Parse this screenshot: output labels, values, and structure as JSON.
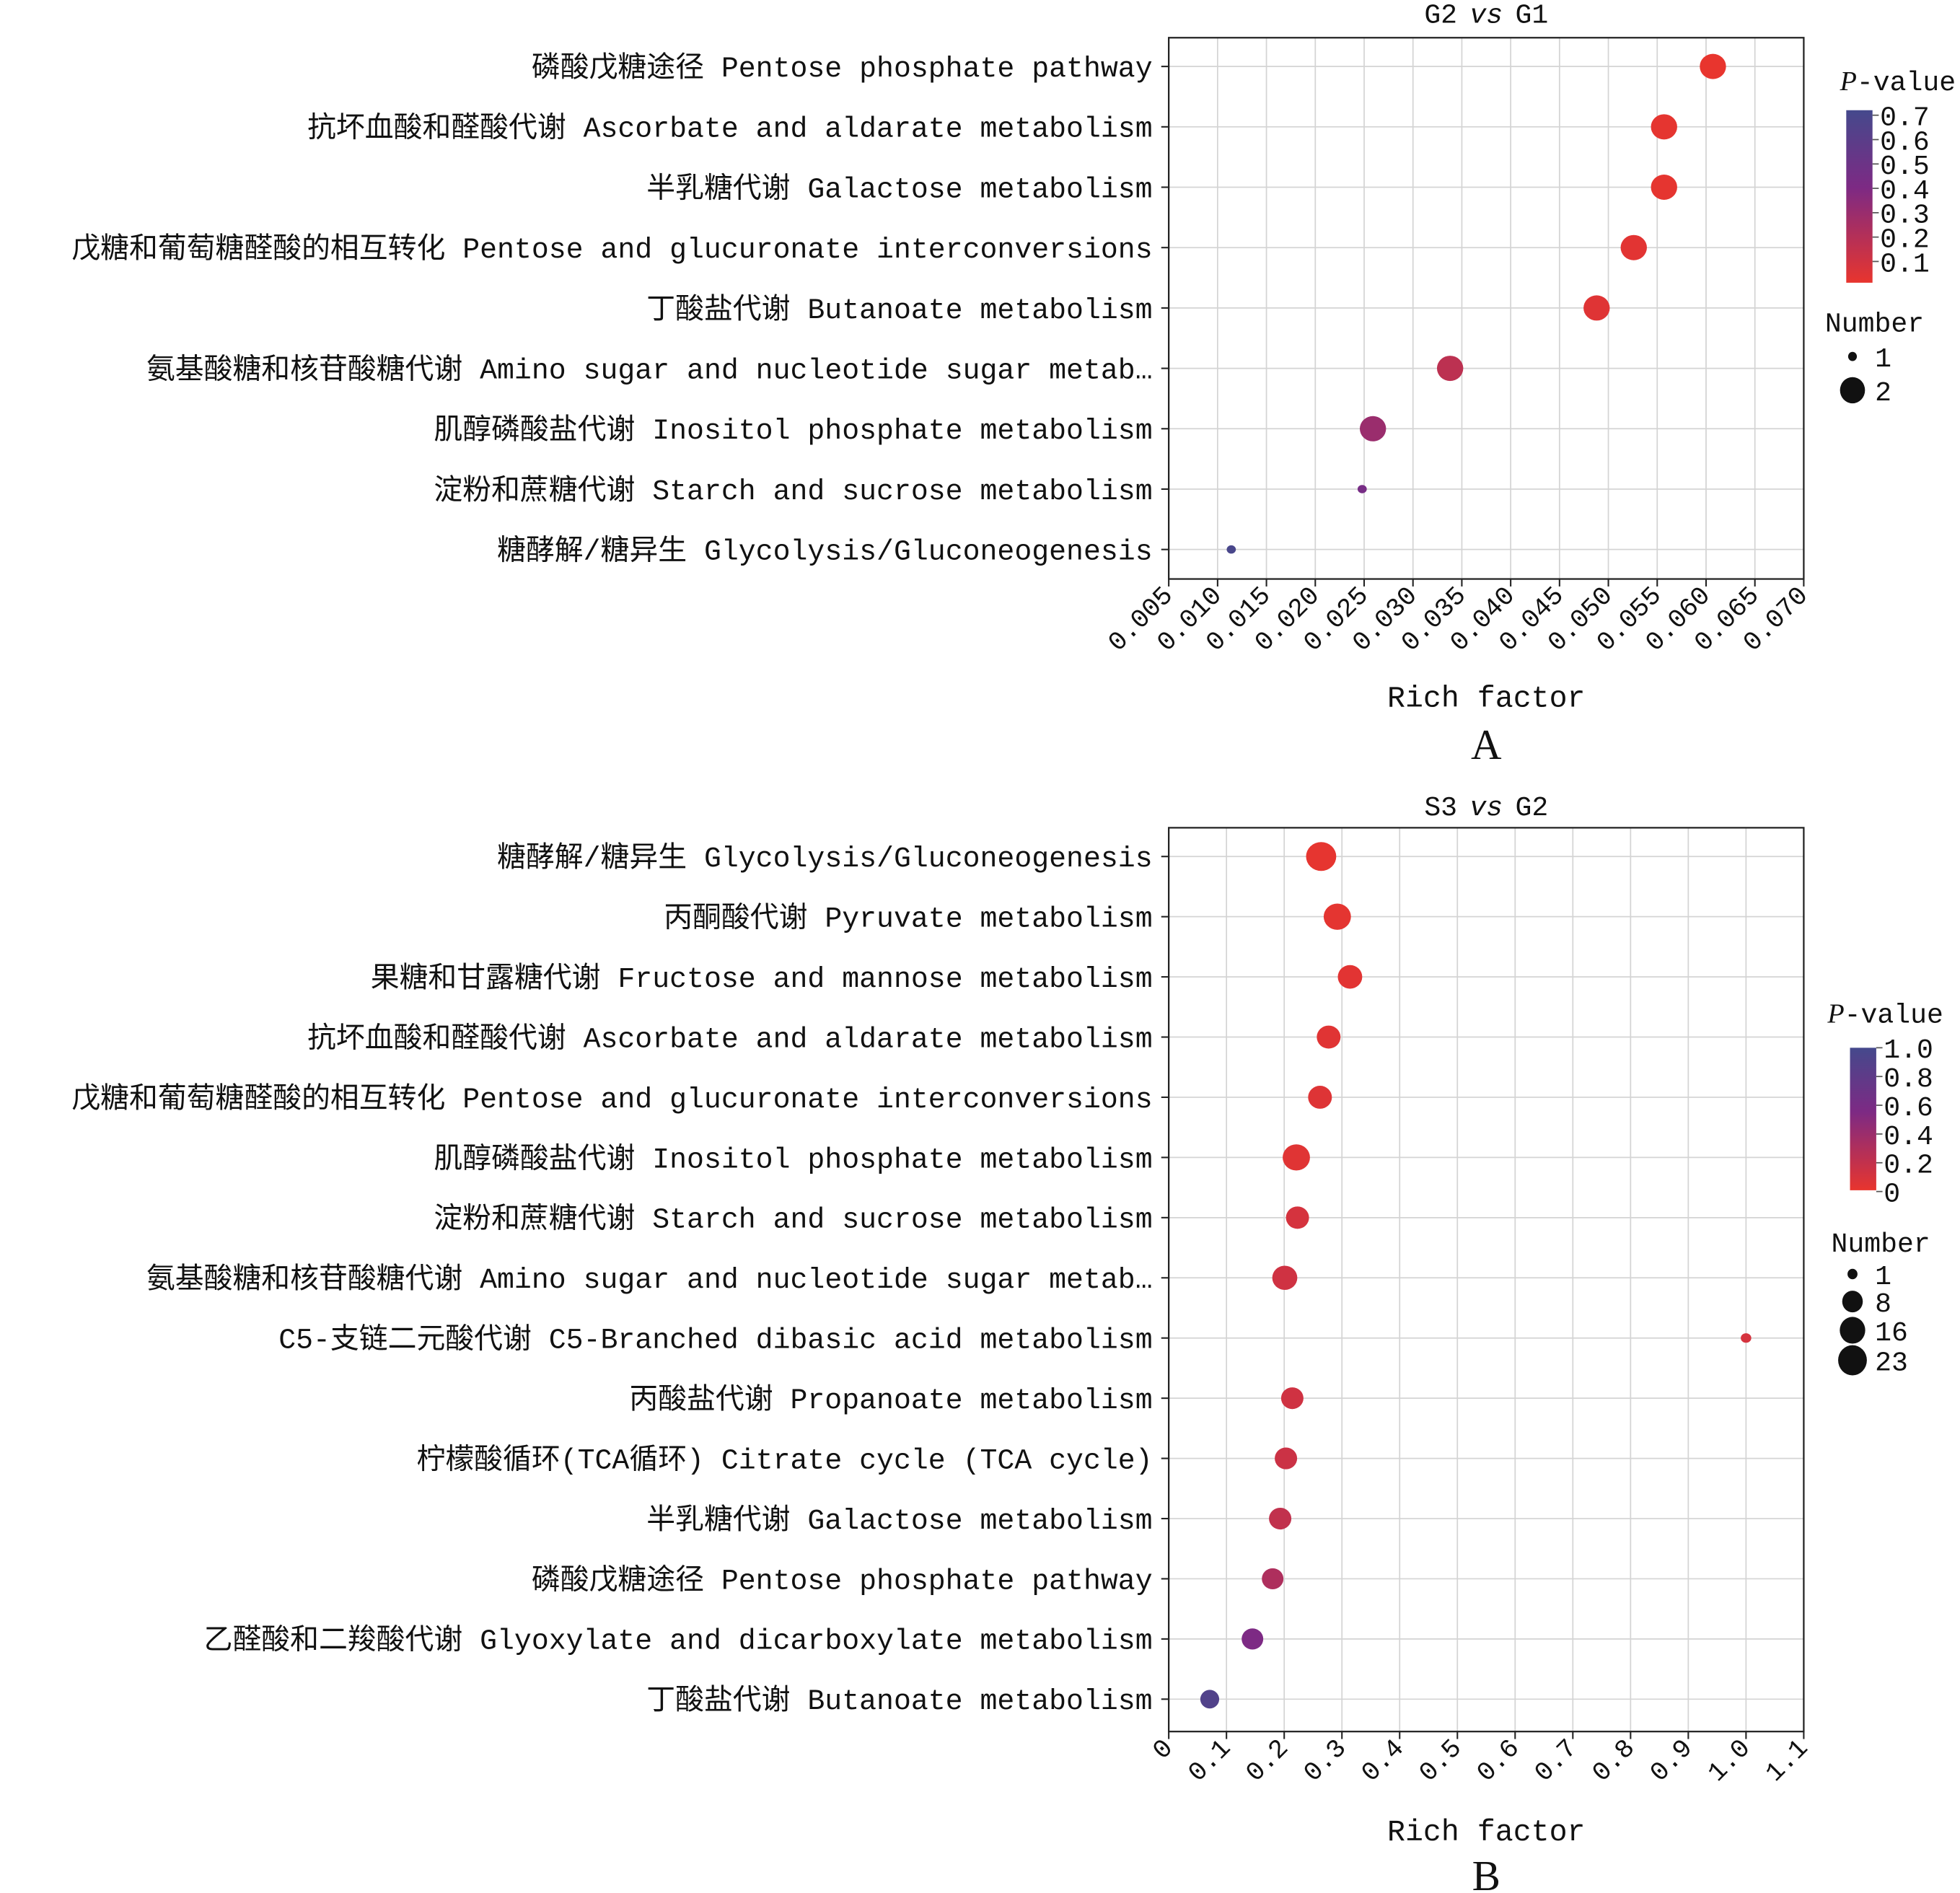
{
  "chart_data": [
    {
      "type": "scatter",
      "panel_label": "A",
      "title": {
        "left": "G2",
        "vs": "vs",
        "right": "G1"
      },
      "xlabel": "Rich factor",
      "xlim": [
        0.005,
        0.07
      ],
      "xticks": [
        "0.005",
        "0.010",
        "0.015",
        "0.020",
        "0.025",
        "0.030",
        "0.035",
        "0.040",
        "0.045",
        "0.050",
        "0.055",
        "0.060",
        "0.065",
        "0.070"
      ],
      "grid": true,
      "legend_placement": "right",
      "color_legend": {
        "title_p": "P",
        "title_rest": "-value",
        "ticks": [
          "0.7",
          "0.6",
          "0.5",
          "0.4",
          "0.3",
          "0.2",
          "0.1"
        ],
        "range": [
          0.05,
          0.72
        ]
      },
      "size_legend": {
        "title": "Number",
        "values": [
          1,
          2
        ]
      },
      "colors": {
        "low": "#e8352e",
        "mid": "#7d2a84",
        "high": "#45498c"
      },
      "points": [
        {
          "label": "磷酸戊糖途径 Pentose phosphate pathway",
          "x": 0.0607,
          "number": 2,
          "p": 0.05
        },
        {
          "label": "抗坏血酸和醛酸代谢 Ascorbate and aldarate metabolism",
          "x": 0.0557,
          "number": 2,
          "p": 0.06
        },
        {
          "label": "半乳糖代谢 Galactose metabolism",
          "x": 0.0557,
          "number": 2,
          "p": 0.06
        },
        {
          "label": "戊糖和葡萄糖醛酸的相互转化 Pentose and glucuronate interconversions",
          "x": 0.0526,
          "number": 2,
          "p": 0.07
        },
        {
          "label": "丁酸盐代谢 Butanoate metabolism",
          "x": 0.0488,
          "number": 2,
          "p": 0.08
        },
        {
          "label": "氨基酸糖和核苷酸糖代谢 Amino sugar and nucleotide sugar metab…",
          "x": 0.0338,
          "number": 2,
          "p": 0.2
        },
        {
          "label": "肌醇磷酸盐代谢 Inositol phosphate metabolism",
          "x": 0.0259,
          "number": 2,
          "p": 0.32
        },
        {
          "label": "淀粉和蔗糖代谢 Starch and sucrose metabolism",
          "x": 0.0248,
          "number": 1,
          "p": 0.45
        },
        {
          "label": "糖酵解/糖异生 Glycolysis/Gluconeogenesis",
          "x": 0.0114,
          "number": 1,
          "p": 0.7
        }
      ]
    },
    {
      "type": "scatter",
      "panel_label": "B",
      "title": {
        "left": "S3",
        "vs": "vs",
        "right": "G2"
      },
      "xlabel": "Rich factor",
      "xlim": [
        0,
        1.1
      ],
      "xticks": [
        "0",
        "0.1",
        "0.2",
        "0.3",
        "0.4",
        "0.5",
        "0.6",
        "0.7",
        "0.8",
        "0.9",
        "1.0",
        "1.1"
      ],
      "grid": true,
      "legend_placement": "right",
      "color_legend": {
        "title_p": "P",
        "title_rest": "-value",
        "ticks": [
          "1.0",
          "0.8",
          "0.6",
          "0.4",
          "0.2",
          "0"
        ],
        "range": [
          0,
          1.0
        ]
      },
      "size_legend": {
        "title": "Number",
        "values": [
          1,
          8,
          16,
          23
        ]
      },
      "colors": {
        "low": "#e8352e",
        "mid": "#7d2a84",
        "high": "#45498c"
      },
      "points": [
        {
          "label": "糖酵解/糖异生 Glycolysis/Gluconeogenesis",
          "x": 0.264,
          "number": 23,
          "p": 0.01
        },
        {
          "label": "丙酮酸代谢 Pyruvate metabolism",
          "x": 0.292,
          "number": 17,
          "p": 0.02
        },
        {
          "label": "果糖和甘露糖代谢 Fructose and mannose metabolism",
          "x": 0.314,
          "number": 12,
          "p": 0.03
        },
        {
          "label": "抗坏血酸和醛酸代谢 Ascorbate and aldarate metabolism",
          "x": 0.277,
          "number": 11,
          "p": 0.04
        },
        {
          "label": "戊糖和葡萄糖醛酸的相互转化 Pentose and glucuronate interconversions",
          "x": 0.262,
          "number": 11,
          "p": 0.05
        },
        {
          "label": "肌醇磷酸盐代谢 Inositol phosphate metabolism",
          "x": 0.221,
          "number": 17,
          "p": 0.04
        },
        {
          "label": "淀粉和蔗糖代谢 Starch and sucrose metabolism",
          "x": 0.223,
          "number": 10,
          "p": 0.1
        },
        {
          "label": "氨基酸糖和核苷酸糖代谢 Amino sugar and nucleotide sugar metab…",
          "x": 0.201,
          "number": 13,
          "p": 0.13
        },
        {
          "label": "C5-支链二元酸代谢 C5-Branched dibasic acid metabolism",
          "x": 1.0,
          "number": 1,
          "p": 0.1
        },
        {
          "label": "丙酸盐代谢 Propanoate metabolism",
          "x": 0.214,
          "number": 9,
          "p": 0.13
        },
        {
          "label": "柠檬酸循环(TCA循环) Citrate cycle (TCA cycle)",
          "x": 0.203,
          "number": 9,
          "p": 0.15
        },
        {
          "label": "半乳糖代谢 Galactose metabolism",
          "x": 0.193,
          "number": 9,
          "p": 0.2
        },
        {
          "label": "磷酸戊糖途径 Pentose phosphate pathway",
          "x": 0.18,
          "number": 8,
          "p": 0.3
        },
        {
          "label": "乙醛酸和二羧酸代谢 Glyoxylate and dicarboxylate metabolism",
          "x": 0.145,
          "number": 8,
          "p": 0.55
        },
        {
          "label": "丁酸盐代谢 Butanoate metabolism",
          "x": 0.071,
          "number": 5,
          "p": 0.9
        }
      ]
    }
  ]
}
